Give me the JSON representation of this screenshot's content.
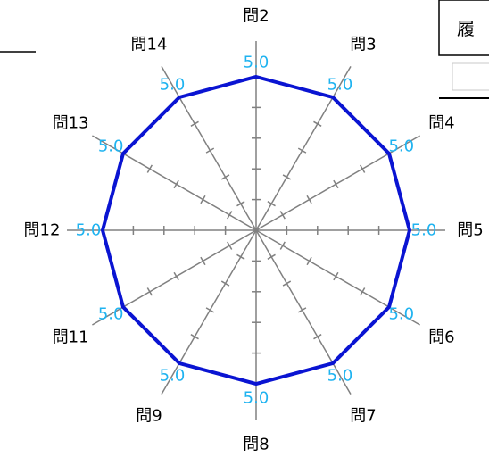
{
  "history_tab": {
    "label": "履"
  },
  "chart_data": {
    "type": "radar",
    "categories": [
      "問2",
      "問3",
      "問4",
      "問5",
      "問6",
      "問7",
      "問8",
      "問9",
      "問11",
      "問12",
      "問13",
      "問14"
    ],
    "series": [
      {
        "values": [
          5.0,
          5.0,
          5.0,
          5.0,
          5.0,
          5.0,
          5.0,
          5.0,
          5.0,
          5.0,
          5.0,
          5.0
        ]
      }
    ],
    "value_labels": [
      "5.0",
      "5.0",
      "5.0",
      "5.0",
      "5.0",
      "5.0",
      "5.0",
      "5.0",
      "5.0",
      "5.0",
      "5.0",
      "5.0"
    ],
    "rlim": [
      0,
      5
    ],
    "ticks": 5,
    "colors": {
      "series": "#0a14d2",
      "axis": "#808080",
      "value_label": "#1fb3f0"
    }
  }
}
